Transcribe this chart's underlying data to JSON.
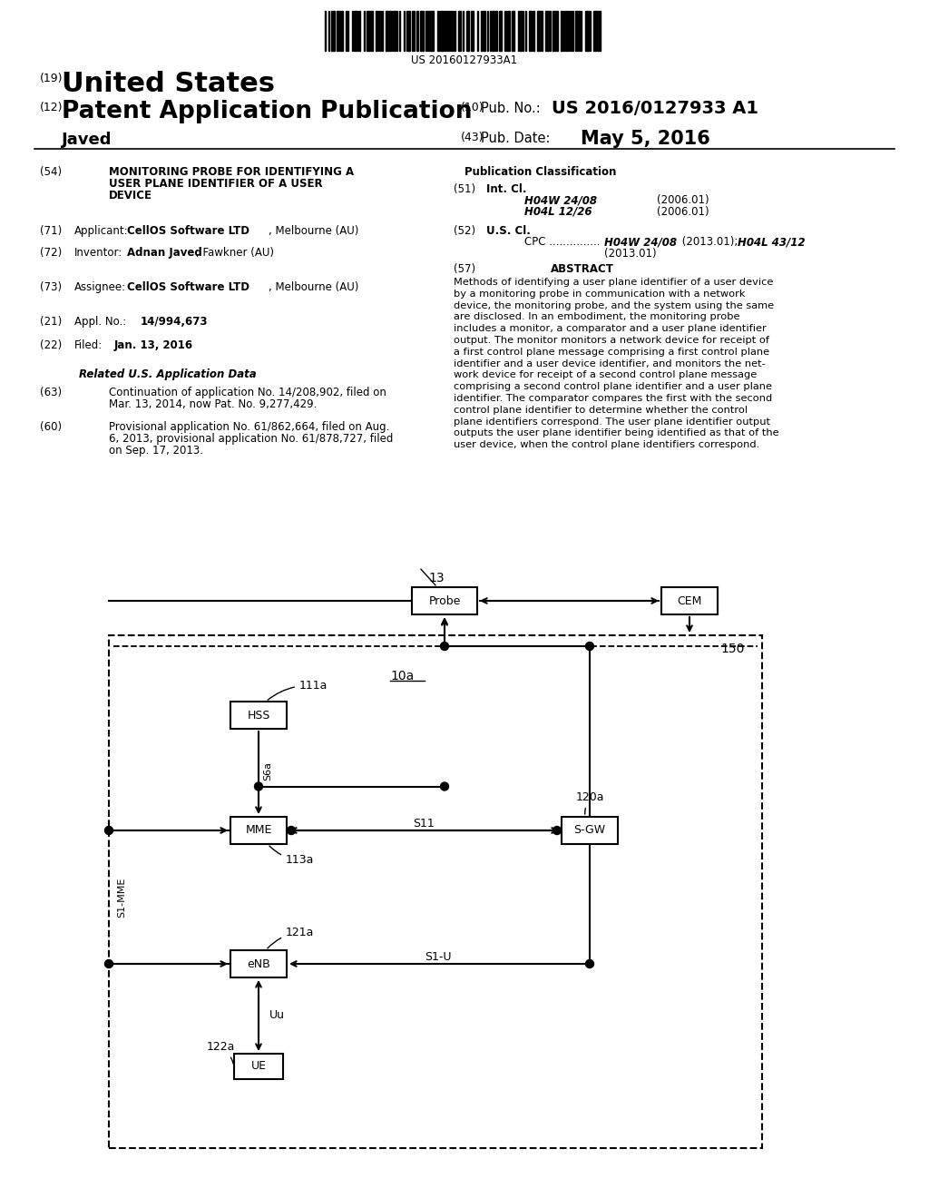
{
  "barcode_text": "US 20160127933A1",
  "patent_number": "US 2016/0127933 A1",
  "pub_date": "May 5, 2016",
  "country": "United States",
  "type": "Patent Application Publication",
  "inventor_name": "Javed",
  "num_19": "(19)",
  "num_12": "(12)",
  "num_10": "(10)",
  "num_43": "(43)",
  "label_pub_no": "Pub. No.:",
  "label_pub_date": "Pub. Date:",
  "section54_num": "(54)",
  "section54_title_line1": "MONITORING PROBE FOR IDENTIFYING A",
  "section54_title_line2": "USER PLANE IDENTIFIER OF A USER",
  "section54_title_line3": "DEVICE",
  "section51_num": "(51)",
  "section51_label": "Int. Cl.",
  "section51_class1": "H04W 24/08",
  "section51_year1": "(2006.01)",
  "section51_class2": "H04L 12/26",
  "section51_year2": "(2006.01)",
  "section52_num": "(52)",
  "section52_label": "U.S. Cl.",
  "section71_num": "(71)",
  "section71_label": "Applicant:",
  "section72_num": "(72)",
  "section72_label": "Inventor:",
  "section73_num": "(73)",
  "section73_label": "Assignee:",
  "section21_num": "(21)",
  "section21_label": "Appl. No.:",
  "section21_value": "14/994,673",
  "section22_num": "(22)",
  "section22_label": "Filed:",
  "section22_value": "Jan. 13, 2016",
  "section_related_title": "Related U.S. Application Data",
  "section63_num": "(63)",
  "section63_line1": "Continuation of application No. 14/208,902, filed on",
  "section63_line2": "Mar. 13, 2014, now Pat. No. 9,277,429.",
  "section60_num": "(60)",
  "section60_line1": "Provisional application No. 61/862,664, filed on Aug.",
  "section60_line2": "6, 2013, provisional application No. 61/878,727, filed",
  "section60_line3": "on Sep. 17, 2013.",
  "pub_class_title": "Publication Classification",
  "abstract_num": "(57)",
  "abstract_title": "ABSTRACT",
  "abstract_lines": [
    "Methods of identifying a user plane identifier of a user device",
    "by a monitoring probe in communication with a network",
    "device, the monitoring probe, and the system using the same",
    "are disclosed. In an embodiment, the monitoring probe",
    "includes a monitor, a comparator and a user plane identifier",
    "output. The monitor monitors a network device for receipt of",
    "a first control plane message comprising a first control plane",
    "identifier and a user device identifier, and monitors the net-",
    "work device for receipt of a second control plane message",
    "comprising a second control plane identifier and a user plane",
    "identifier. The comparator compares the first with the second",
    "control plane identifier to determine whether the control",
    "plane identifiers correspond. The user plane identifier output",
    "outputs the user plane identifier being identified as that of the",
    "user device, when the control plane identifiers correspond."
  ],
  "bg_color": "#ffffff",
  "text_color": "#000000",
  "diagram_label_13": "13",
  "diagram_label_10a": "10a",
  "diagram_label_111a": "111a",
  "diagram_label_113a": "113a",
  "diagram_label_120a": "120a",
  "diagram_label_121a": "121a",
  "diagram_label_122a": "122a",
  "diagram_label_150": "150",
  "diagram_label_s6a": "S6a",
  "diagram_label_s11": "S11",
  "diagram_label_s1u": "S1-U",
  "diagram_label_s1mme": "S1-MME",
  "diagram_label_uu": "Uu",
  "node_probe": "Probe",
  "node_cem": "CEM",
  "node_hss": "HSS",
  "node_mme": "MME",
  "node_sgw": "S-GW",
  "node_enb": "eNB",
  "node_ue": "UE"
}
